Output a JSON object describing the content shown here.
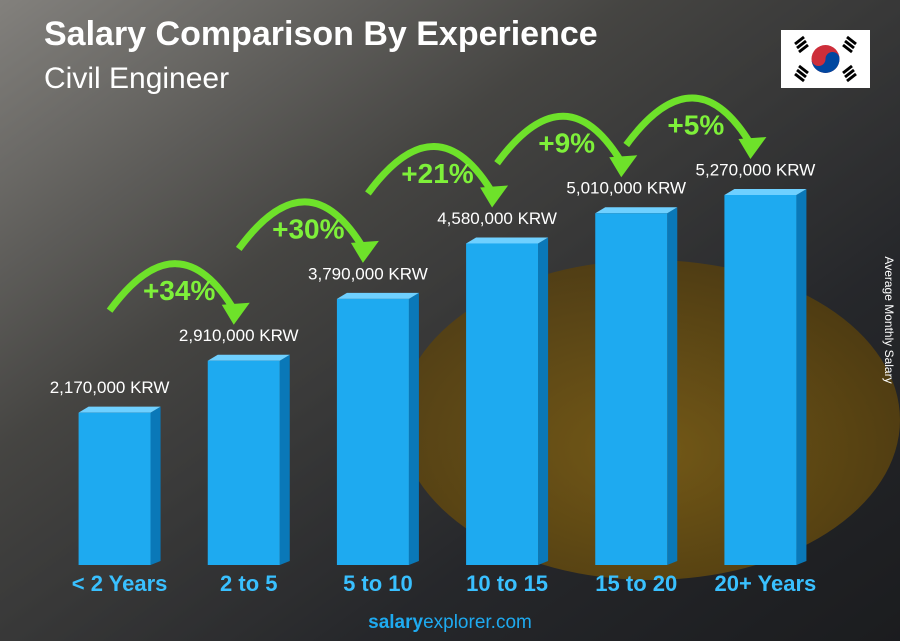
{
  "chart_data": {
    "type": "bar",
    "title": "Salary Comparison By Experience",
    "subtitle": "Civil Engineer",
    "y_label": "Average Monthly Salary",
    "categories": [
      "< 2 Years",
      "2 to 5",
      "5 to 10",
      "10 to 15",
      "15 to 20",
      "20+ Years"
    ],
    "values": [
      2170000,
      2910000,
      3790000,
      4580000,
      5010000,
      5270000
    ],
    "value_labels": [
      "2,170,000 KRW",
      "2,910,000 KRW",
      "3,790,000 KRW",
      "4,580,000 KRW",
      "5,010,000 KRW",
      "5,270,000 KRW"
    ],
    "annotations": [
      "+34%",
      "+30%",
      "+21%",
      "+9%",
      "+5%"
    ],
    "color": "#1eaaf0",
    "footer": {
      "brand": "salary",
      "domain": "explorer.com"
    }
  }
}
